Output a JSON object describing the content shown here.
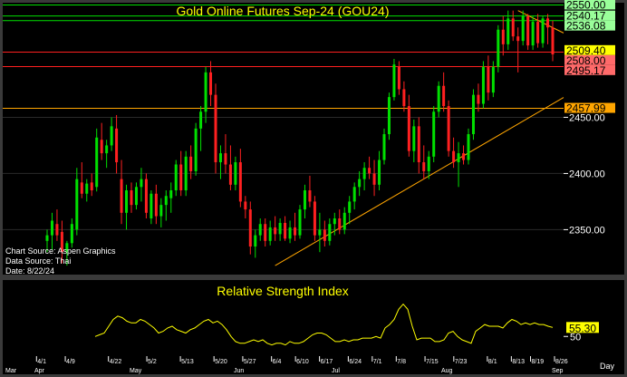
{
  "chart_data": [
    {
      "type": "candlestick",
      "title": "Gold Online Futures Sep-24 (GOU24)",
      "ylim": [
        2310,
        2552
      ],
      "y_ticks": [
        "2350.00",
        "2400.00",
        "2450.00"
      ],
      "x_major_ticks": [
        "4/1",
        "4/9",
        "4/22",
        "5/2",
        "5/13",
        "5/20",
        "5/27",
        "6/4",
        "6/10",
        "6/17",
        "6/24",
        "7/1",
        "7/8",
        "7/15",
        "7/23",
        "8/1",
        "8/13",
        "8/19",
        "8/26"
      ],
      "x_month_labels": [
        "Mar",
        "Apr",
        "May",
        "Jun",
        "Jul",
        "Aug",
        "Sep"
      ],
      "x_unit_label": "Day",
      "price_levels": [
        {
          "label": "2550.00",
          "value": 2550.0,
          "color": "#00e000",
          "box": "#9aff9a"
        },
        {
          "label": "2540.17",
          "value": 2540.17,
          "color": "#00e000",
          "box": "#9aff9a"
        },
        {
          "label": "2536.08",
          "value": 2536.08,
          "color": "#00e000",
          "box": "#9aff9a"
        },
        {
          "label": "2509.40",
          "value": 2509.4,
          "color": "#ffffff",
          "box": "#ffff00"
        },
        {
          "label": "2508.00",
          "value": 2508.0,
          "color": "#ff2020",
          "box": "#ff6a6a"
        },
        {
          "label": "2495.17",
          "value": 2495.17,
          "color": "#ff2020",
          "box": "#ff6a6a"
        },
        {
          "label": "2457.99",
          "value": 2457.99,
          "color": "#ffa500",
          "box": "#ffa500"
        }
      ],
      "trendlines": [
        {
          "name": "support",
          "from": {
            "x": "6/3",
            "y": 2318
          },
          "to": {
            "x": "9/3",
            "y": 2462
          },
          "color": "#ffa500"
        },
        {
          "name": "resistance",
          "from": {
            "x": "8/20",
            "y": 2545
          },
          "to": {
            "x": "9/2",
            "y": 2532
          },
          "color": "#ffa500"
        }
      ],
      "candles": [
        {
          "o": 2340,
          "h": 2350,
          "l": 2330,
          "c": 2345
        },
        {
          "o": 2345,
          "h": 2365,
          "l": 2332,
          "c": 2358
        },
        {
          "o": 2355,
          "h": 2368,
          "l": 2340,
          "c": 2345
        },
        {
          "o": 2348,
          "h": 2358,
          "l": 2320,
          "c": 2330
        },
        {
          "o": 2330,
          "h": 2340,
          "l": 2318,
          "c": 2338
        },
        {
          "o": 2338,
          "h": 2360,
          "l": 2334,
          "c": 2355
        },
        {
          "o": 2350,
          "h": 2405,
          "l": 2345,
          "c": 2395
        },
        {
          "o": 2392,
          "h": 2410,
          "l": 2378,
          "c": 2382
        },
        {
          "o": 2382,
          "h": 2395,
          "l": 2375,
          "c": 2391
        },
        {
          "o": 2392,
          "h": 2400,
          "l": 2380,
          "c": 2385
        },
        {
          "o": 2388,
          "h": 2440,
          "l": 2384,
          "c": 2432
        },
        {
          "o": 2430,
          "h": 2445,
          "l": 2412,
          "c": 2418
        },
        {
          "o": 2418,
          "h": 2430,
          "l": 2405,
          "c": 2425
        },
        {
          "o": 2425,
          "h": 2450,
          "l": 2420,
          "c": 2442
        },
        {
          "o": 2440,
          "h": 2452,
          "l": 2400,
          "c": 2410
        },
        {
          "o": 2395,
          "h": 2412,
          "l": 2355,
          "c": 2365
        },
        {
          "o": 2365,
          "h": 2390,
          "l": 2350,
          "c": 2385
        },
        {
          "o": 2385,
          "h": 2392,
          "l": 2365,
          "c": 2372
        },
        {
          "o": 2372,
          "h": 2392,
          "l": 2368,
          "c": 2388
        },
        {
          "o": 2388,
          "h": 2405,
          "l": 2375,
          "c": 2395
        },
        {
          "o": 2395,
          "h": 2400,
          "l": 2360,
          "c": 2365
        },
        {
          "o": 2360,
          "h": 2385,
          "l": 2355,
          "c": 2382
        },
        {
          "o": 2382,
          "h": 2390,
          "l": 2355,
          "c": 2362
        },
        {
          "o": 2362,
          "h": 2378,
          "l": 2352,
          "c": 2372
        },
        {
          "o": 2372,
          "h": 2385,
          "l": 2358,
          "c": 2380
        },
        {
          "o": 2378,
          "h": 2392,
          "l": 2365,
          "c": 2385
        },
        {
          "o": 2385,
          "h": 2412,
          "l": 2380,
          "c": 2408
        },
        {
          "o": 2408,
          "h": 2420,
          "l": 2380,
          "c": 2385
        },
        {
          "o": 2385,
          "h": 2420,
          "l": 2380,
          "c": 2415
        },
        {
          "o": 2415,
          "h": 2425,
          "l": 2395,
          "c": 2402
        },
        {
          "o": 2402,
          "h": 2445,
          "l": 2398,
          "c": 2440
        },
        {
          "o": 2440,
          "h": 2460,
          "l": 2420,
          "c": 2455
        },
        {
          "o": 2455,
          "h": 2495,
          "l": 2445,
          "c": 2490
        },
        {
          "o": 2490,
          "h": 2500,
          "l": 2460,
          "c": 2470
        },
        {
          "o": 2470,
          "h": 2480,
          "l": 2400,
          "c": 2410
        },
        {
          "o": 2410,
          "h": 2425,
          "l": 2395,
          "c": 2418
        },
        {
          "o": 2418,
          "h": 2435,
          "l": 2400,
          "c": 2408
        },
        {
          "o": 2408,
          "h": 2425,
          "l": 2385,
          "c": 2390
        },
        {
          "o": 2390,
          "h": 2415,
          "l": 2385,
          "c": 2410
        },
        {
          "o": 2410,
          "h": 2422,
          "l": 2370,
          "c": 2375
        },
        {
          "o": 2375,
          "h": 2380,
          "l": 2360,
          "c": 2368
        },
        {
          "o": 2368,
          "h": 2375,
          "l": 2328,
          "c": 2335
        },
        {
          "o": 2335,
          "h": 2350,
          "l": 2325,
          "c": 2345
        },
        {
          "o": 2345,
          "h": 2360,
          "l": 2340,
          "c": 2355
        },
        {
          "o": 2355,
          "h": 2360,
          "l": 2335,
          "c": 2340
        },
        {
          "o": 2340,
          "h": 2358,
          "l": 2336,
          "c": 2352
        },
        {
          "o": 2352,
          "h": 2362,
          "l": 2340,
          "c": 2346
        },
        {
          "o": 2346,
          "h": 2360,
          "l": 2340,
          "c": 2356
        },
        {
          "o": 2356,
          "h": 2362,
          "l": 2340,
          "c": 2342
        },
        {
          "o": 2342,
          "h": 2358,
          "l": 2338,
          "c": 2352
        },
        {
          "o": 2352,
          "h": 2365,
          "l": 2340,
          "c": 2345
        },
        {
          "o": 2345,
          "h": 2372,
          "l": 2342,
          "c": 2368
        },
        {
          "o": 2368,
          "h": 2390,
          "l": 2360,
          "c": 2385
        },
        {
          "o": 2385,
          "h": 2398,
          "l": 2370,
          "c": 2375
        },
        {
          "o": 2375,
          "h": 2380,
          "l": 2340,
          "c": 2345
        },
        {
          "o": 2345,
          "h": 2365,
          "l": 2330,
          "c": 2350
        },
        {
          "o": 2350,
          "h": 2358,
          "l": 2335,
          "c": 2340
        },
        {
          "o": 2340,
          "h": 2360,
          "l": 2336,
          "c": 2355
        },
        {
          "o": 2355,
          "h": 2365,
          "l": 2345,
          "c": 2360
        },
        {
          "o": 2360,
          "h": 2368,
          "l": 2346,
          "c": 2350
        },
        {
          "o": 2350,
          "h": 2370,
          "l": 2346,
          "c": 2365
        },
        {
          "o": 2365,
          "h": 2380,
          "l": 2355,
          "c": 2375
        },
        {
          "o": 2375,
          "h": 2392,
          "l": 2368,
          "c": 2388
        },
        {
          "o": 2388,
          "h": 2402,
          "l": 2380,
          "c": 2395
        },
        {
          "o": 2395,
          "h": 2410,
          "l": 2385,
          "c": 2405
        },
        {
          "o": 2405,
          "h": 2415,
          "l": 2395,
          "c": 2400
        },
        {
          "o": 2400,
          "h": 2412,
          "l": 2380,
          "c": 2390
        },
        {
          "o": 2390,
          "h": 2420,
          "l": 2385,
          "c": 2412
        },
        {
          "o": 2412,
          "h": 2440,
          "l": 2408,
          "c": 2435
        },
        {
          "o": 2435,
          "h": 2472,
          "l": 2430,
          "c": 2468
        },
        {
          "o": 2468,
          "h": 2502,
          "l": 2465,
          "c": 2497
        },
        {
          "o": 2495,
          "h": 2500,
          "l": 2470,
          "c": 2475
        },
        {
          "o": 2475,
          "h": 2482,
          "l": 2455,
          "c": 2460
        },
        {
          "o": 2460,
          "h": 2470,
          "l": 2415,
          "c": 2420
        },
        {
          "o": 2420,
          "h": 2448,
          "l": 2410,
          "c": 2442
        },
        {
          "o": 2442,
          "h": 2450,
          "l": 2400,
          "c": 2410
        },
        {
          "o": 2410,
          "h": 2425,
          "l": 2395,
          "c": 2402
        },
        {
          "o": 2402,
          "h": 2420,
          "l": 2395,
          "c": 2415
        },
        {
          "o": 2415,
          "h": 2460,
          "l": 2410,
          "c": 2455
        },
        {
          "o": 2455,
          "h": 2482,
          "l": 2450,
          "c": 2478
        },
        {
          "o": 2478,
          "h": 2490,
          "l": 2455,
          "c": 2460
        },
        {
          "o": 2460,
          "h": 2465,
          "l": 2415,
          "c": 2420
        },
        {
          "o": 2420,
          "h": 2432,
          "l": 2405,
          "c": 2410
        },
        {
          "o": 2410,
          "h": 2428,
          "l": 2388,
          "c": 2418
        },
        {
          "o": 2418,
          "h": 2425,
          "l": 2408,
          "c": 2412
        },
        {
          "o": 2412,
          "h": 2440,
          "l": 2408,
          "c": 2435
        },
        {
          "o": 2435,
          "h": 2475,
          "l": 2430,
          "c": 2470
        },
        {
          "o": 2470,
          "h": 2480,
          "l": 2455,
          "c": 2462
        },
        {
          "o": 2462,
          "h": 2500,
          "l": 2458,
          "c": 2495
        },
        {
          "o": 2495,
          "h": 2505,
          "l": 2465,
          "c": 2472
        },
        {
          "o": 2472,
          "h": 2500,
          "l": 2468,
          "c": 2495
        },
        {
          "o": 2495,
          "h": 2532,
          "l": 2490,
          "c": 2528
        },
        {
          "o": 2528,
          "h": 2540,
          "l": 2505,
          "c": 2515
        },
        {
          "o": 2515,
          "h": 2545,
          "l": 2510,
          "c": 2538
        },
        {
          "o": 2538,
          "h": 2545,
          "l": 2518,
          "c": 2522
        },
        {
          "o": 2522,
          "h": 2530,
          "l": 2490,
          "c": 2518
        },
        {
          "o": 2518,
          "h": 2545,
          "l": 2514,
          "c": 2540
        },
        {
          "o": 2540,
          "h": 2542,
          "l": 2510,
          "c": 2514
        },
        {
          "o": 2514,
          "h": 2540,
          "l": 2510,
          "c": 2535
        },
        {
          "o": 2535,
          "h": 2542,
          "l": 2512,
          "c": 2516
        },
        {
          "o": 2516,
          "h": 2540,
          "l": 2512,
          "c": 2538
        },
        {
          "o": 2538,
          "h": 2542,
          "l": 2515,
          "c": 2530
        },
        {
          "o": 2530,
          "h": 2536,
          "l": 2500,
          "c": 2506
        }
      ]
    },
    {
      "type": "line",
      "title": "Relative Strength Index",
      "y_ticks": [
        "50"
      ],
      "last_value_label": "55.30",
      "values": [
        50,
        51,
        52,
        56,
        60,
        62,
        61,
        59,
        58,
        58,
        60,
        59,
        57,
        55,
        52,
        53,
        55,
        56,
        54,
        53,
        52,
        54,
        55,
        57,
        59,
        60,
        58,
        59,
        57,
        54,
        50,
        47,
        46,
        46,
        47,
        48,
        47,
        48,
        46,
        45,
        46,
        46,
        45,
        47,
        46,
        46,
        47,
        49,
        51,
        52,
        52,
        51,
        49,
        47,
        47,
        48,
        47,
        48,
        48,
        49,
        49,
        49,
        50,
        49,
        55,
        57,
        60,
        66,
        69,
        66,
        56,
        48,
        49,
        49,
        49,
        47,
        47,
        48,
        52,
        53,
        50,
        48,
        47,
        46,
        53,
        55,
        57,
        56,
        56,
        56,
        55,
        58,
        60,
        59,
        57,
        58,
        57,
        58,
        57,
        57,
        56,
        55.3
      ]
    }
  ],
  "chart_source": {
    "source_line": "Chart Source: Aspen Graphics",
    "data_line": "Data Source: Thai",
    "date_line": "Date: 8/22/24"
  },
  "colors": {
    "background": "#000000",
    "frame": "#3a3a3a",
    "up_candle": "#00e000",
    "down_candle": "#ff2020",
    "text": "#ffff00",
    "rsi_line": "#ffff00",
    "axis_text": "#ffffff",
    "support_line": "#ffa500"
  }
}
